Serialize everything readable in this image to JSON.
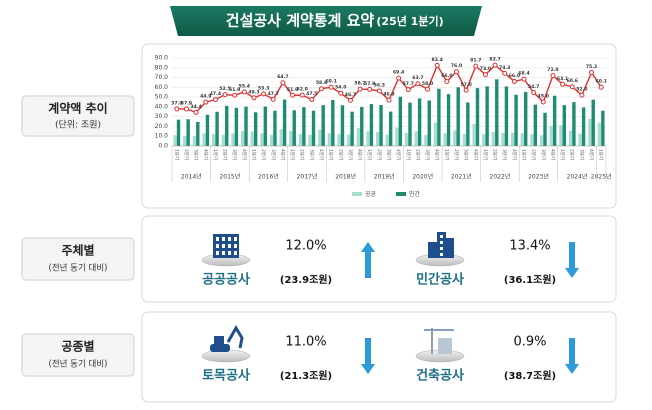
{
  "header": {
    "title": "건설공사 계약통계 요약",
    "subtitle": "(25년 1분기)"
  },
  "chart_section": {
    "label": "계약액 추이",
    "note": "(단위: 조원)"
  },
  "chart_data": {
    "type": "bar",
    "stacked": false,
    "categories": [
      "1분기",
      "2분기",
      "3분기",
      "4분기",
      "1분기",
      "2분기",
      "3분기",
      "4분기",
      "1분기",
      "2분기",
      "3분기",
      "4분기",
      "1분기",
      "2분기",
      "3분기",
      "4분기",
      "1분기",
      "2분기",
      "3분기",
      "4분기",
      "1분기",
      "2분기",
      "3분기",
      "4분기",
      "1분기",
      "2분기",
      "3분기",
      "4분기",
      "1분기",
      "2분기",
      "3분기",
      "4분기",
      "1분기",
      "2분기",
      "3분기",
      "4분기",
      "1분기",
      "2분기",
      "3분기",
      "4분기",
      "1분기",
      "2분기",
      "3분기",
      "4분기",
      "1분기"
    ],
    "year_labels": [
      "2014년",
      "2015년",
      "2016년",
      "2017년",
      "2018년",
      "2019년",
      "2020년",
      "2021년",
      "2022년",
      "2023년",
      "2024년",
      "2025년"
    ],
    "series": [
      {
        "name": "공공",
        "color": "#a8dcd2",
        "values": [
          11.0,
          10.5,
          9.8,
          13.0,
          12.4,
          11.5,
          12.9,
          15.2,
          14.8,
          13.0,
          11.6,
          17.2,
          15.4,
          12.3,
          11.4,
          16.8,
          13.0,
          12.4,
          11.6,
          18.3,
          15.0,
          14.4,
          11.7,
          19.0,
          13.3,
          15.1,
          11.4,
          23.8,
          13.0,
          16.0,
          12.4,
          22.5,
          12.0,
          14.5,
          13.4,
          13.6,
          13.1,
          12.4,
          11.0,
          20.6,
          21.3,
          15.7,
          12.6,
          27.8,
          23.9
        ]
      },
      {
        "name": "민간",
        "color": "#1e8c72",
        "values": [
          26.9,
          27.4,
          24.6,
          31.9,
          35.0,
          41.0,
          39.0,
          40.2,
          34.5,
          40.3,
          36.1,
          47.5,
          36.5,
          39.7,
          36.1,
          41.8,
          47.1,
          41.6,
          35.1,
          39.9,
          42.9,
          41.9,
          35.2,
          50.4,
          44.4,
          48.6,
          46.6,
          58.6,
          53.0,
          60.0,
          44.6,
          59.2,
          61.0,
          68.2,
          60.9,
          52.4,
          55.3,
          42.3,
          34.0,
          51.4,
          41.8,
          44.9,
          39.4,
          47.4,
          36.1
        ]
      }
    ],
    "line": {
      "color": "#e03030",
      "values": [
        37.9,
        37.9,
        34.4,
        44.9,
        47.4,
        52.5,
        51.9,
        55.4,
        49.3,
        53.3,
        47.7,
        64.7,
        51.9,
        52.0,
        47.5,
        58.6,
        60.1,
        54.0,
        46.7,
        58.2,
        57.9,
        56.3,
        46.9,
        69.4,
        57.7,
        63.7,
        58.0,
        82.4,
        66.0,
        76.0,
        57.0,
        81.7,
        73.0,
        82.7,
        74.3,
        66.0,
        68.4,
        54.7,
        45.0,
        72.0,
        63.1,
        60.6,
        52.0,
        75.2,
        60.1
      ],
      "value_labels": [
        "37.9",
        "37.9",
        "34.4",
        "44.9",
        "47.4",
        "52.5",
        "51.9",
        "55.4",
        "49.3",
        "53.3",
        "47.7",
        "64.7",
        "51.9",
        "52.0",
        "47.5",
        "58.6",
        "60.1",
        "54.0",
        "46.7",
        "58.2",
        "57.9",
        "56.3",
        "46.9",
        "69.4",
        "57.7",
        "63.7",
        "58.0",
        "82.4",
        "66.0",
        "76.0",
        "57.0",
        "81.7",
        "73.0",
        "82.7",
        "74.3",
        "66.0",
        "68.4",
        "54.7",
        "45.0",
        "72.0",
        "63.1",
        "60.6",
        "52.0",
        "75.2",
        "60.1"
      ]
    },
    "ylim": [
      0,
      90
    ],
    "yticks": [
      {
        "value": 0,
        "label": "0.0"
      },
      {
        "value": 10,
        "label": "10.0"
      },
      {
        "value": 20,
        "label": "20.0"
      },
      {
        "value": 30,
        "label": "30.0"
      },
      {
        "value": 40,
        "label": "40.0"
      },
      {
        "value": 50,
        "label": "50.0"
      },
      {
        "value": 60,
        "label": "60.0"
      },
      {
        "value": 70,
        "label": "70.0"
      },
      {
        "value": 80,
        "label": "80.0"
      },
      {
        "value": 90,
        "label": "90.0"
      }
    ],
    "grid": true
  },
  "sections": [
    {
      "label": "주체별",
      "note": "(전년 동기 대비)",
      "items": [
        {
          "name": "공공공사",
          "change": "12.0%",
          "amount": "(23.9조원)",
          "direction": "up"
        },
        {
          "name": "민간공사",
          "change": "13.4%",
          "amount": "(36.1조원)",
          "direction": "down"
        }
      ]
    },
    {
      "label": "공종별",
      "note": "(전년 동기 대비)",
      "items": [
        {
          "name": "토목공사",
          "change": "11.0%",
          "amount": "(21.3조원)",
          "direction": "down"
        },
        {
          "name": "건축공사",
          "change": "0.9%",
          "amount": "(38.7조원)",
          "direction": "down"
        }
      ]
    }
  ]
}
